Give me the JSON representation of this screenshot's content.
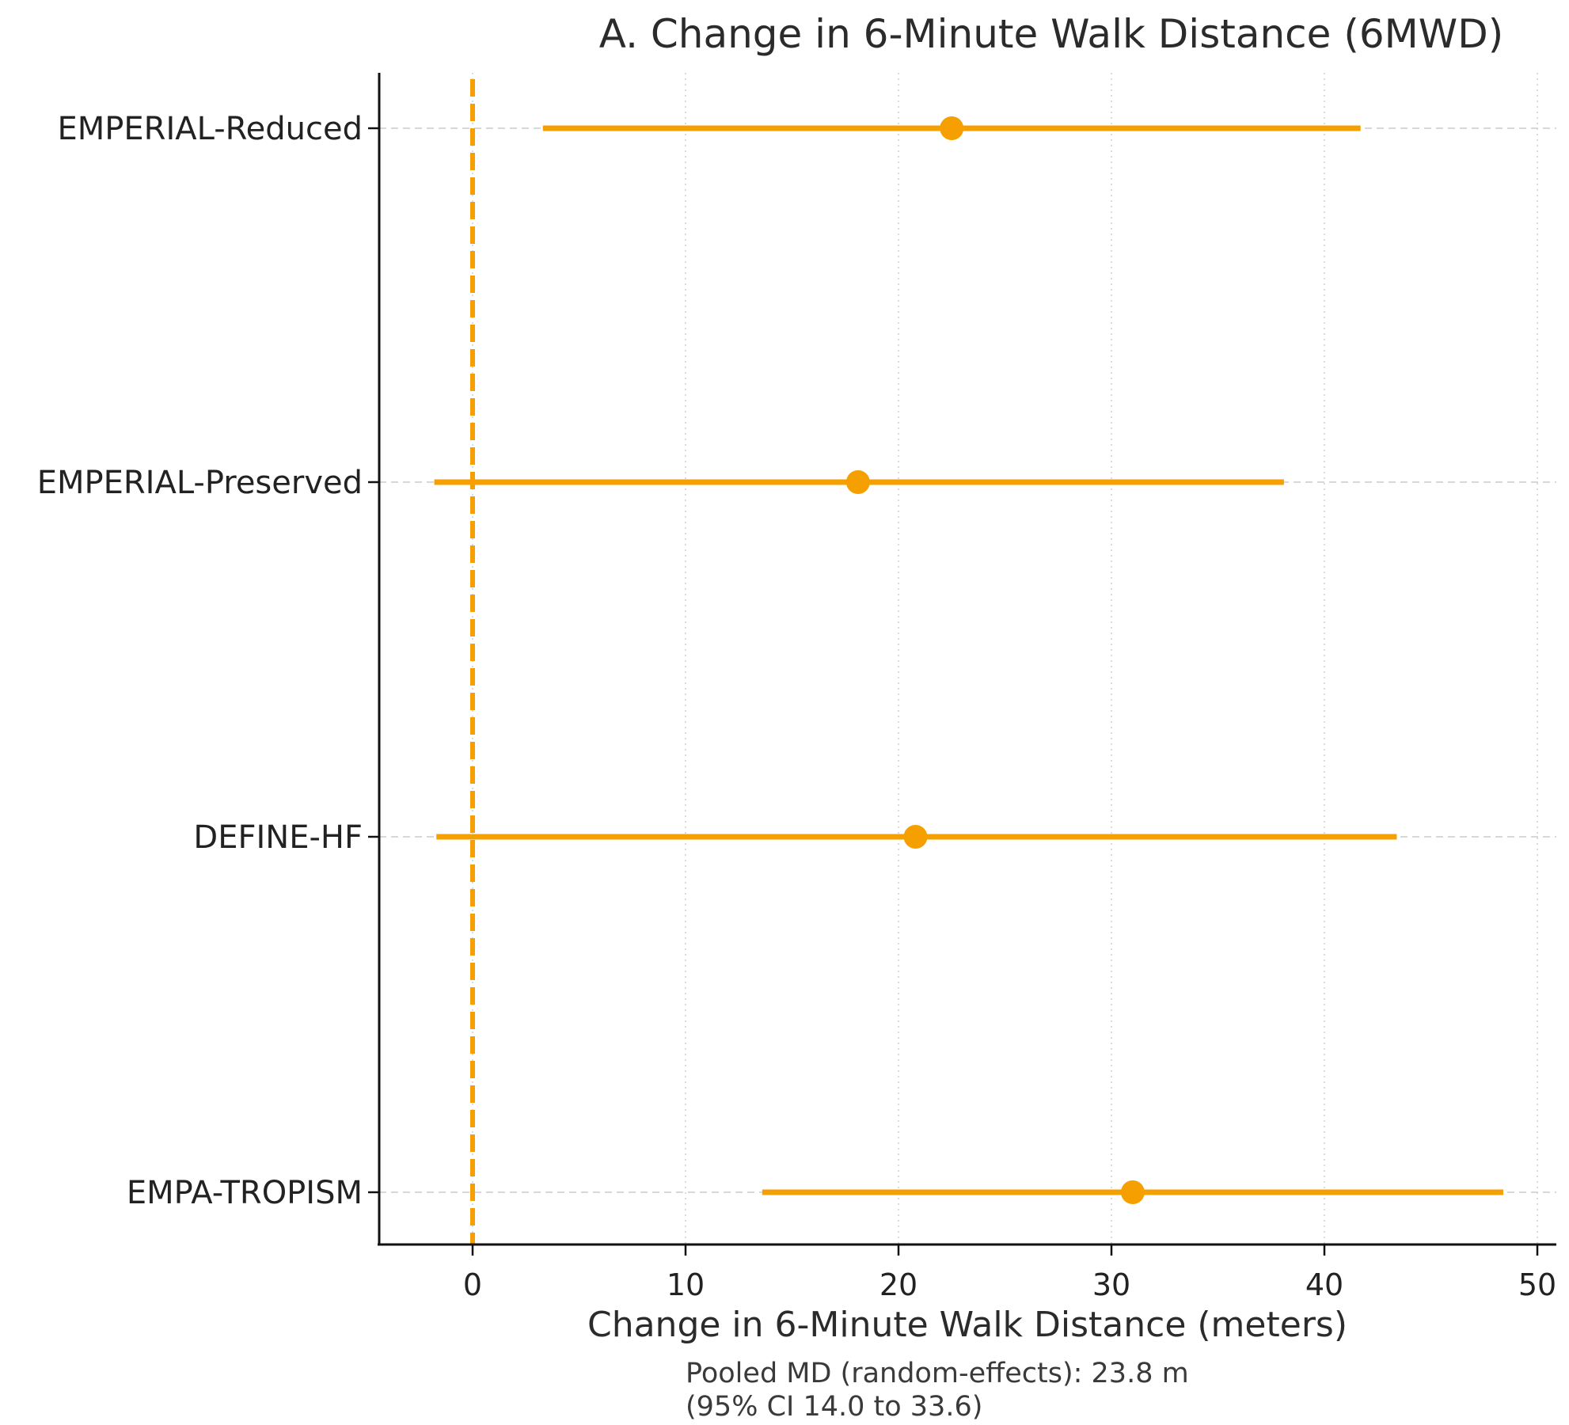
{
  "chart_data": {
    "type": "forest",
    "title": "A. Change in 6-Minute Walk Distance (6MWD)",
    "xlabel": "Change in 6-Minute Walk Distance (meters)",
    "ylabel": "",
    "xlim": [
      -4.5,
      51
    ],
    "xticks": [
      0,
      10,
      20,
      30,
      40,
      50
    ],
    "reference_line": 0,
    "grid": "x-dotted, y-dashed",
    "color": "#f5a000",
    "studies": [
      {
        "label": "EMPERIAL-Reduced",
        "md": 22.5,
        "lower": 3.3,
        "upper": 41.7
      },
      {
        "label": "EMPERIAL-Preserved",
        "md": 18.1,
        "lower": -1.8,
        "upper": 38.1
      },
      {
        "label": "DEFINE-HF",
        "md": 20.8,
        "lower": -1.7,
        "upper": 43.4
      },
      {
        "label": "EMPA-TROPISM",
        "md": 31.0,
        "lower": 13.6,
        "upper": 48.4
      }
    ],
    "annotation": [
      "Pooled MD (random-effects): 23.8 m",
      "(95% CI 14.0 to 33.6)"
    ]
  }
}
